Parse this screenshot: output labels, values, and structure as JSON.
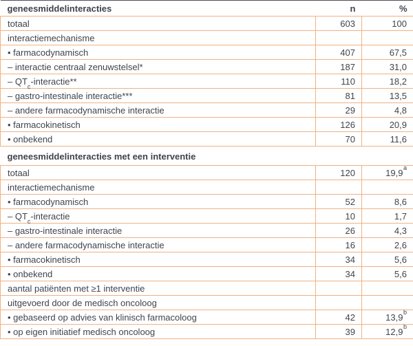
{
  "colors": {
    "border_orange": "#efb184",
    "text": "#3f434c",
    "top_rule": "#4d4e53"
  },
  "table": {
    "columns": {
      "n": "n",
      "pct": "%"
    },
    "sections": [
      {
        "title": "geneesmiddelinteracties",
        "rows": [
          {
            "label": "totaal",
            "n": "603",
            "pct": "100"
          },
          {
            "label": "interactiemechanisme",
            "n": "",
            "pct": ""
          },
          {
            "label": "• farmacodynamisch",
            "n": "407",
            "pct": "67,5"
          },
          {
            "label": "– interactie centraal zenuwstelsel*",
            "n": "187",
            "pct": "31,0"
          },
          {
            "label_pre": "– QT",
            "label_sub": "c",
            "label_post": "-interactie**",
            "n": "110",
            "pct": "18,2"
          },
          {
            "label": "– gastro-intestinale interactie***",
            "n": "81",
            "pct": "13,5"
          },
          {
            "label": "– andere farmacodynamische interactie",
            "n": "29",
            "pct": "4,8"
          },
          {
            "label": "• farmacokinetisch",
            "n": "126",
            "pct": "20,9"
          },
          {
            "label": "• onbekend",
            "n": "70",
            "pct": "11,6"
          }
        ]
      },
      {
        "title": "geneesmiddelinteracties met een interventie",
        "rows": [
          {
            "label": "totaal",
            "n": "120",
            "pct": "19,9",
            "pct_sup": "a"
          },
          {
            "label": "interactiemechanisme",
            "n": "",
            "pct": ""
          },
          {
            "label": "• farmacodynamisch",
            "n": "52",
            "pct": "8,6"
          },
          {
            "label_pre": "– QT",
            "label_sub": "c",
            "label_post": "-interactie",
            "n": "10",
            "pct": "1,7"
          },
          {
            "label": "– gastro-intestinale interactie",
            "n": "26",
            "pct": "4,3"
          },
          {
            "label": "– andere farmacodynamische interactie",
            "n": "16",
            "pct": "2,6"
          },
          {
            "label": "• farmacokinetisch",
            "n": "34",
            "pct": "5,6"
          },
          {
            "label": "• onbekend",
            "n": "34",
            "pct": "5,6"
          },
          {
            "label": "aantal patiënten met ≥1 interventie",
            "n": "",
            "pct": ""
          },
          {
            "label": "uitgevoerd door de medisch oncoloog",
            "n": "",
            "pct": ""
          },
          {
            "label": "• gebaseerd op advies van klinisch farmacoloog",
            "n": "42",
            "pct": "13,9",
            "pct_sup": "b"
          },
          {
            "label": "• op eigen initiatief medisch oncoloog",
            "n": "39",
            "pct": "12,9",
            "pct_sup": "b"
          }
        ]
      }
    ]
  }
}
